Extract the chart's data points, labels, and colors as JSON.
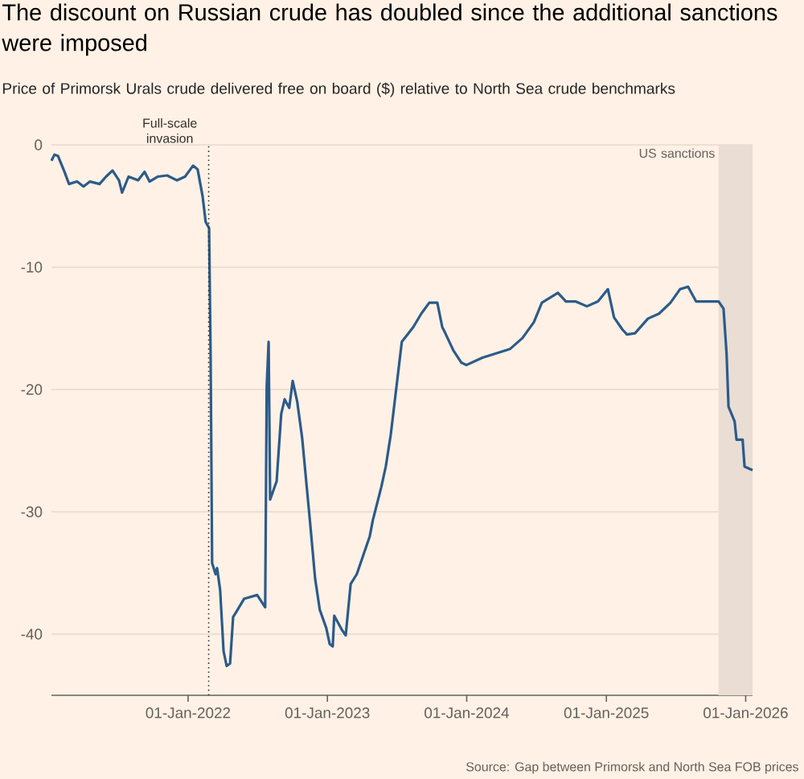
{
  "chart_data": {
    "type": "line",
    "title": "The discount on Russian crude has doubled since the additional sanctions were imposed",
    "subtitle": "Price of Primorsk Urals crude delivered free on board ($) relative to North Sea crude benchmarks",
    "x": [
      "2021-01-08",
      "2021-01-16",
      "2021-01-25",
      "2021-02-11",
      "2021-02-23",
      "2021-03-16",
      "2021-04-02",
      "2021-04-19",
      "2021-05-14",
      "2021-05-31",
      "2021-06-17",
      "2021-07-04",
      "2021-07-12",
      "2021-07-29",
      "2021-08-23",
      "2021-09-09",
      "2021-09-22",
      "2021-10-13",
      "2021-11-07",
      "2021-12-03",
      "2021-12-24",
      "2022-01-14",
      "2022-01-26",
      "2022-02-08",
      "2022-02-16",
      "2022-02-25",
      "2022-03-01",
      "2022-03-05",
      "2022-03-14",
      "2022-03-18",
      "2022-03-26",
      "2022-04-04",
      "2022-04-12",
      "2022-04-21",
      "2022-04-29",
      "2022-05-07",
      "2022-05-28",
      "2022-07-01",
      "2022-07-22",
      "2022-07-26",
      "2022-07-31",
      "2022-08-04",
      "2022-08-21",
      "2022-09-02",
      "2022-09-11",
      "2022-09-23",
      "2022-10-02",
      "2022-10-14",
      "2022-10-27",
      "2022-11-05",
      "2022-11-17",
      "2022-11-30",
      "2022-12-12",
      "2022-12-29",
      "2023-01-07",
      "2023-01-15",
      "2023-01-19",
      "2023-02-09",
      "2023-02-18",
      "2023-03-03",
      "2023-03-19",
      "2023-04-22",
      "2023-04-30",
      "2023-05-22",
      "2023-06-03",
      "2023-06-16",
      "2023-07-15",
      "2023-08-14",
      "2023-09-04",
      "2023-09-25",
      "2023-10-16",
      "2023-10-29",
      "2023-11-06",
      "2023-11-27",
      "2023-12-18",
      "2023-12-31",
      "2024-02-11",
      "2024-04-23",
      "2024-05-26",
      "2024-06-25",
      "2024-07-16",
      "2024-08-27",
      "2024-09-17",
      "2024-10-12",
      "2024-11-11",
      "2024-12-10",
      "2025-01-05",
      "2025-01-21",
      "2025-02-12",
      "2025-02-24",
      "2025-03-17",
      "2025-04-20",
      "2025-05-19",
      "2025-06-18",
      "2025-07-13",
      "2025-08-03",
      "2025-08-24",
      "2025-09-23",
      "2025-10-22",
      "2025-11-04",
      "2025-11-12",
      "2025-11-17",
      "2025-12-03",
      "2025-12-08",
      "2025-12-24",
      "2025-12-29",
      "2026-01-19"
    ],
    "values": [
      -1.3,
      -0.8,
      -0.9,
      -2.2,
      -3.2,
      -3.0,
      -3.4,
      -3.0,
      -3.2,
      -2.6,
      -2.1,
      -2.9,
      -3.9,
      -2.6,
      -2.9,
      -2.2,
      -3.0,
      -2.6,
      -2.5,
      -2.9,
      -2.6,
      -1.7,
      -2.0,
      -4.2,
      -6.3,
      -6.8,
      -17.1,
      -34.2,
      -35.1,
      -34.6,
      -36.4,
      -41.4,
      -42.6,
      -42.4,
      -38.6,
      -38.2,
      -37.1,
      -36.8,
      -37.8,
      -19.7,
      -16.1,
      -29.0,
      -27.5,
      -22.0,
      -20.8,
      -21.5,
      -19.3,
      -21.0,
      -24.0,
      -27.0,
      -31.0,
      -35.5,
      -38.0,
      -39.5,
      -40.8,
      -41.0,
      -38.5,
      -39.7,
      -40.1,
      -35.9,
      -35.1,
      -32.0,
      -30.7,
      -28.0,
      -26.3,
      -23.7,
      -16.1,
      -14.9,
      -13.8,
      -12.9,
      -12.9,
      -14.9,
      -15.4,
      -16.8,
      -17.8,
      -18.0,
      -17.4,
      -16.7,
      -15.8,
      -14.5,
      -12.9,
      -12.1,
      -12.8,
      -12.8,
      -13.2,
      -12.8,
      -11.8,
      -14.1,
      -15.1,
      -15.5,
      -15.4,
      -14.2,
      -13.8,
      -12.9,
      -11.8,
      -11.6,
      -12.8,
      -12.8,
      -12.8,
      -13.4,
      -17.1,
      -21.4,
      -22.6,
      -24.1,
      -24.1,
      -26.3,
      -26.6
    ],
    "color": "#2b5b8a",
    "line_style": "solid",
    "xlim": [
      "2021-01-08",
      "2026-01-19"
    ],
    "ylim": [
      -45,
      0
    ],
    "xticks": [
      {
        "value": "2022-01-01",
        "label": "01-Jan-2022"
      },
      {
        "value": "2023-01-01",
        "label": "01-Jan-2023"
      },
      {
        "value": "2024-01-01",
        "label": "01-Jan-2024"
      },
      {
        "value": "2025-01-01",
        "label": "01-Jan-2025"
      },
      {
        "value": "2026-01-01",
        "label": "01-Jan-2026"
      }
    ],
    "yticks": [
      0,
      -10,
      -20,
      -30,
      -40
    ],
    "grid": "y",
    "ref_lines": [
      {
        "axis": "x",
        "value": "2022-02-24",
        "label": "Full-scale invasion",
        "color": "#33302e",
        "line_style": "dotted"
      }
    ],
    "bands": [
      {
        "axis": "x",
        "from": "2025-10-22",
        "to": "2026-01-19",
        "label": "US sanctions",
        "color": "#e9ddd4"
      }
    ],
    "annotations": [
      "Source: Gap between Primorsk and North Sea FOB prices"
    ]
  }
}
